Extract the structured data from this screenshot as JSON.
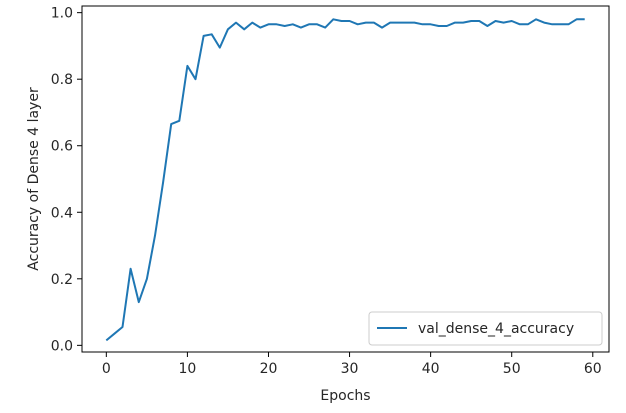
{
  "chart_data": {
    "type": "line",
    "title": "",
    "xlabel": "Epochs",
    "ylabel": "Accuracy of Dense 4 layer",
    "xlim": [
      -3,
      62
    ],
    "ylim": [
      -0.02,
      1.02
    ],
    "xticks": [
      0,
      10,
      20,
      30,
      40,
      50,
      60
    ],
    "yticks": [
      0.0,
      0.2,
      0.4,
      0.6,
      0.8,
      1.0
    ],
    "xtick_labels": [
      "0",
      "10",
      "20",
      "30",
      "40",
      "50",
      "60"
    ],
    "ytick_labels": [
      "0.0",
      "0.2",
      "0.4",
      "0.6",
      "0.8",
      "1.0"
    ],
    "grid": false,
    "legend_position": "lower-right",
    "series": [
      {
        "name": "val_dense_4_accuracy",
        "color": "#1f77b4",
        "x": [
          0,
          1,
          2,
          3,
          4,
          5,
          6,
          7,
          8,
          9,
          10,
          11,
          12,
          13,
          14,
          15,
          16,
          17,
          18,
          19,
          20,
          21,
          22,
          23,
          24,
          25,
          26,
          27,
          28,
          29,
          30,
          31,
          32,
          33,
          34,
          35,
          36,
          37,
          38,
          39,
          40,
          41,
          42,
          43,
          44,
          45,
          46,
          47,
          48,
          49,
          50,
          51,
          52,
          53,
          54,
          55,
          56,
          57,
          58,
          59
        ],
        "values": [
          0.015,
          0.035,
          0.055,
          0.23,
          0.13,
          0.2,
          0.33,
          0.49,
          0.665,
          0.675,
          0.84,
          0.8,
          0.93,
          0.935,
          0.895,
          0.95,
          0.97,
          0.95,
          0.97,
          0.955,
          0.965,
          0.965,
          0.96,
          0.965,
          0.955,
          0.965,
          0.965,
          0.955,
          0.98,
          0.975,
          0.975,
          0.965,
          0.97,
          0.97,
          0.955,
          0.97,
          0.97,
          0.97,
          0.97,
          0.965,
          0.965,
          0.96,
          0.96,
          0.97,
          0.97,
          0.975,
          0.975,
          0.96,
          0.975,
          0.97,
          0.975,
          0.965,
          0.965,
          0.98,
          0.97,
          0.965,
          0.965,
          0.965,
          0.98,
          0.98
        ]
      }
    ]
  }
}
